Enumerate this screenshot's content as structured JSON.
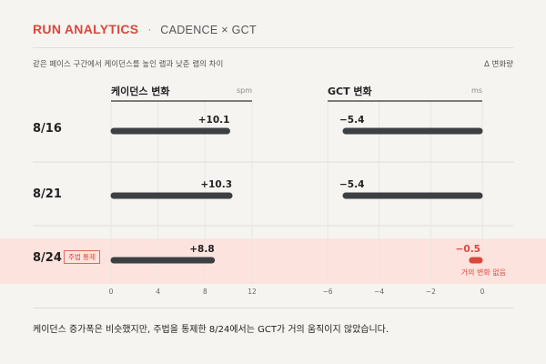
{
  "header": {
    "brand": "RUN ANALYTICS",
    "separator": "·",
    "subtitle": "CADENCE × GCT"
  },
  "caption": "같은 페이스 구간에서 케이던스를 높인 랩과 낮춘 랩의 차이",
  "delta_label": "Δ 변화량",
  "panels": {
    "cadence": {
      "title": "케이던스 변화",
      "unit": "spm"
    },
    "gct": {
      "title": "GCT 변화",
      "unit": "ms"
    }
  },
  "highlight": {
    "tag": "주법 통제",
    "note": "거의 변화 없음"
  },
  "footer": "케이던스 증가폭은 비슷했지만, 주법을 통제한 8/24에서는 GCT가 거의 움직이지 않았습니다.",
  "colors": {
    "accent": "#d9483b",
    "bar": "#3d4043",
    "highlight_band": "#fde3de",
    "text": "#222222"
  },
  "chart_data": [
    {
      "type": "bar",
      "orientation": "horizontal",
      "title": "케이던스 변화",
      "unit": "spm",
      "categories": [
        "8/16",
        "8/21",
        "8/24"
      ],
      "values": [
        10.1,
        10.3,
        8.8
      ],
      "labels": [
        "+10.1",
        "+10.3",
        "+8.8"
      ],
      "xlim": [
        0,
        12
      ],
      "ticks": [
        0,
        4,
        8,
        12
      ],
      "grid": true,
      "highlight_category": "8/24"
    },
    {
      "type": "bar",
      "orientation": "horizontal",
      "title": "GCT 변화",
      "unit": "ms",
      "categories": [
        "8/16",
        "8/21",
        "8/24"
      ],
      "values": [
        -5.4,
        -5.4,
        -0.5
      ],
      "labels": [
        "−5.4",
        "−5.4",
        "−0.5"
      ],
      "xlim": [
        -6,
        0
      ],
      "ticks": [
        -6,
        -4,
        -2,
        0
      ],
      "grid": true,
      "highlight_category": "8/24"
    }
  ]
}
